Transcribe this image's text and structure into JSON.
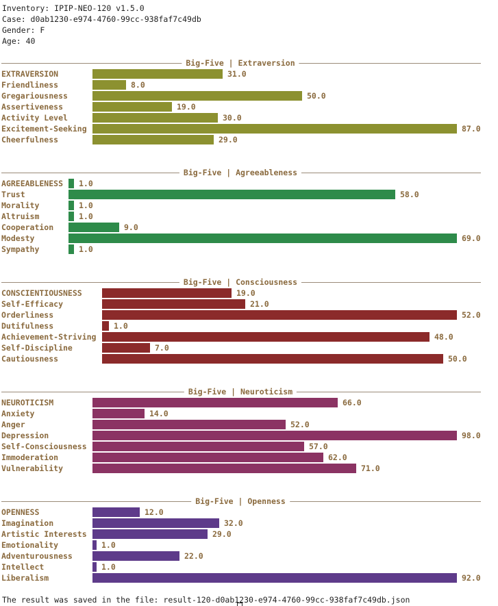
{
  "header": {
    "inventory": "Inventory: IPIP-NEO-120 v1.5.0",
    "case": "Case: d0ab1230-e974-4760-99cc-938faf7c49db",
    "gender": "Gender: F",
    "age": "Age: 40"
  },
  "sections": [
    {
      "title": "Big-Five | Extraversion",
      "color": "#8c9130",
      "items": [
        {
          "label": "EXTRAVERSION",
          "value": 31.0,
          "text": "31.0"
        },
        {
          "label": "Friendliness",
          "value": 8.0,
          "text": "8.0"
        },
        {
          "label": "Gregariousness",
          "value": 50.0,
          "text": "50.0"
        },
        {
          "label": "Assertiveness",
          "value": 19.0,
          "text": "19.0"
        },
        {
          "label": "Activity Level",
          "value": 30.0,
          "text": "30.0"
        },
        {
          "label": "Excitement-Seeking",
          "value": 87.0,
          "text": "87.0"
        },
        {
          "label": "Cheerfulness",
          "value": 29.0,
          "text": "29.0"
        }
      ]
    },
    {
      "title": "Big-Five | Agreeableness",
      "color": "#2e8b4a",
      "items": [
        {
          "label": "AGREEABLENESS",
          "value": 1.0,
          "text": "1.0"
        },
        {
          "label": "Trust",
          "value": 58.0,
          "text": "58.0"
        },
        {
          "label": "Morality",
          "value": 1.0,
          "text": "1.0"
        },
        {
          "label": "Altruism",
          "value": 1.0,
          "text": "1.0"
        },
        {
          "label": "Cooperation",
          "value": 9.0,
          "text": "9.0"
        },
        {
          "label": "Modesty",
          "value": 69.0,
          "text": "69.0"
        },
        {
          "label": "Sympathy",
          "value": 1.0,
          "text": "1.0"
        }
      ]
    },
    {
      "title": "Big-Five | Consciousness",
      "color": "#8b2a2a",
      "items": [
        {
          "label": "CONSCIENTIOUSNESS",
          "value": 19.0,
          "text": "19.0"
        },
        {
          "label": "Self-Efficacy",
          "value": 21.0,
          "text": "21.0"
        },
        {
          "label": "Orderliness",
          "value": 52.0,
          "text": "52.0"
        },
        {
          "label": "Dutifulness",
          "value": 1.0,
          "text": "1.0"
        },
        {
          "label": "Achievement-Striving",
          "value": 48.0,
          "text": "48.0"
        },
        {
          "label": "Self-Discipline",
          "value": 7.0,
          "text": "7.0"
        },
        {
          "label": "Cautiousness",
          "value": 50.0,
          "text": "50.0"
        }
      ]
    },
    {
      "title": "Big-Five | Neuroticism",
      "color": "#8b3363",
      "items": [
        {
          "label": "NEUROTICISM",
          "value": 66.0,
          "text": "66.0"
        },
        {
          "label": "Anxiety",
          "value": 14.0,
          "text": "14.0"
        },
        {
          "label": "Anger",
          "value": 52.0,
          "text": "52.0"
        },
        {
          "label": "Depression",
          "value": 98.0,
          "text": "98.0"
        },
        {
          "label": "Self-Consciousness",
          "value": 57.0,
          "text": "57.0"
        },
        {
          "label": "Immoderation",
          "value": 62.0,
          "text": "62.0"
        },
        {
          "label": "Vulnerability",
          "value": 71.0,
          "text": "71.0"
        }
      ]
    },
    {
      "title": "Big-Five | Openness",
      "color": "#5e3b8a",
      "items": [
        {
          "label": "OPENNESS",
          "value": 12.0,
          "text": "12.0"
        },
        {
          "label": "Imagination",
          "value": 32.0,
          "text": "32.0"
        },
        {
          "label": "Artistic Interests",
          "value": 29.0,
          "text": "29.0"
        },
        {
          "label": "Emotionality",
          "value": 1.0,
          "text": "1.0"
        },
        {
          "label": "Adventurousness",
          "value": 22.0,
          "text": "22.0"
        },
        {
          "label": "Intellect",
          "value": 1.0,
          "text": "1.0"
        },
        {
          "label": "Liberalism",
          "value": 92.0,
          "text": "92.0"
        }
      ]
    }
  ],
  "footer": "The result was saved in the file: result-120-d0ab1230-e974-4760-99cc-938faf7c49db.json"
}
